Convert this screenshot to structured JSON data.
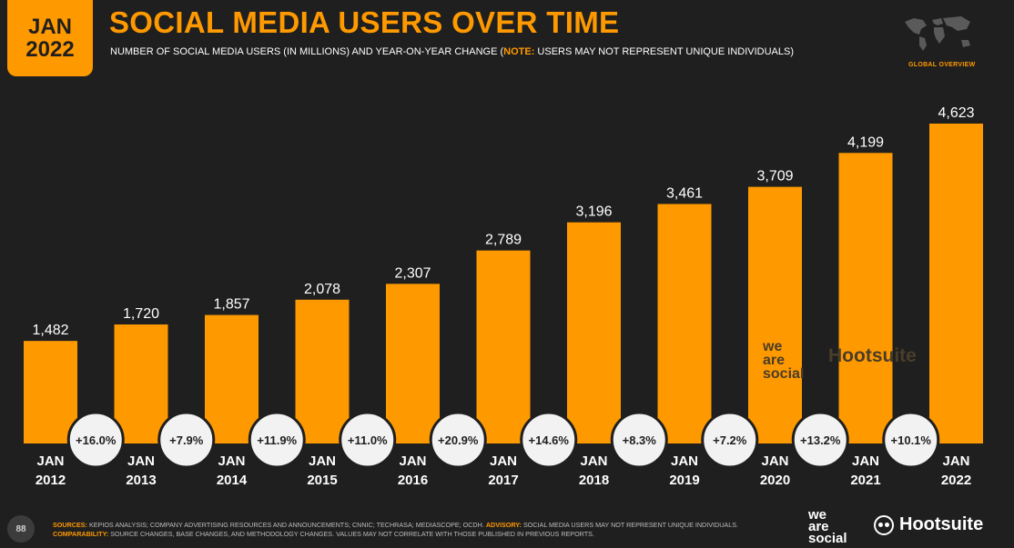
{
  "badge": {
    "month": "JAN",
    "year": "2022"
  },
  "header": {
    "title": "SOCIAL MEDIA USERS OVER TIME",
    "subtitle_main": "NUMBER OF SOCIAL MEDIA USERS (IN MILLIONS) AND YEAR-ON-YEAR CHANGE (",
    "subtitle_note_label": "NOTE:",
    "subtitle_note": " USERS MAY NOT REPRESENT UNIQUE INDIVIDUALS)",
    "section_label": "GLOBAL OVERVIEW"
  },
  "colors": {
    "accent": "#ff9900",
    "background": "#1f1f1f",
    "bubble": "#f2f2f2"
  },
  "chart_data": {
    "type": "bar",
    "categories": [
      "JAN 2012",
      "JAN 2013",
      "JAN 2014",
      "JAN 2015",
      "JAN 2016",
      "JAN 2017",
      "JAN 2018",
      "JAN 2019",
      "JAN 2020",
      "JAN 2021",
      "JAN 2022"
    ],
    "values": [
      1482,
      1720,
      1857,
      2078,
      2307,
      2789,
      3196,
      3461,
      3709,
      4199,
      4623
    ],
    "value_labels": [
      "1,482",
      "1,720",
      "1,857",
      "2,078",
      "2,307",
      "2,789",
      "3,196",
      "3,461",
      "3,709",
      "4,199",
      "4,623"
    ],
    "yoy_change": [
      "+16.0%",
      "+7.9%",
      "+11.9%",
      "+11.0%",
      "+20.9%",
      "+14.6%",
      "+8.3%",
      "+7.2%",
      "+13.2%",
      "+10.1%"
    ],
    "title": "SOCIAL MEDIA USERS OVER TIME",
    "xlabel": "",
    "ylabel": "",
    "grid": false,
    "legend": "none"
  },
  "watermark": {
    "was_lines": [
      "we",
      "are",
      "social"
    ],
    "hootsuite": "Hootsuite"
  },
  "footer": {
    "page_number": "88",
    "sources_label": "SOURCES:",
    "sources_text": " KEPIOS ANALYSIS; COMPANY ADVERTISING RESOURCES AND ANNOUNCEMENTS; CNNIC; TECHRASA; MEDIASCOPE; OCDH. ",
    "advisory_label": "ADVISORY:",
    "advisory_text": " SOCIAL MEDIA USERS MAY NOT REPRESENT UNIQUE INDIVIDUALS. ",
    "comparability_label": "COMPARABILITY:",
    "comparability_text": " SOURCE CHANGES, BASE CHANGES, AND METHODOLOGY CHANGES. VALUES MAY NOT CORRELATE WITH THOSE PUBLISHED IN PREVIOUS REPORTS.",
    "was_lines": [
      "we",
      "are",
      "social"
    ],
    "hootsuite": "Hootsuite"
  }
}
